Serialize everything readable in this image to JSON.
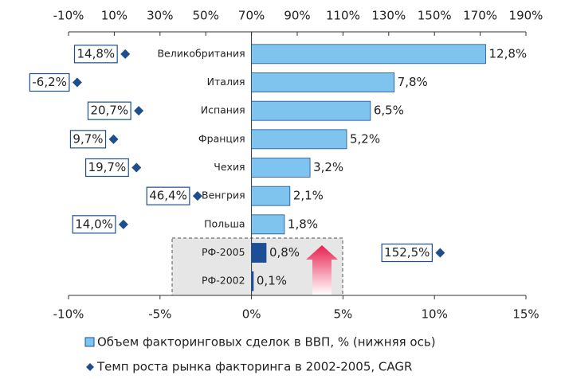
{
  "chart_data": {
    "type": "bar",
    "orientation": "horizontal",
    "categories": [
      "Великобритания",
      "Италия",
      "Испания",
      "Франция",
      "Чехия",
      "Венгрия",
      "Польша",
      "РФ-2005",
      "РФ-2002"
    ],
    "series": [
      {
        "name": "Объем факторинговых сделок в ВВП, % (нижняя ось)",
        "color": "#7fc4ef",
        "colors": [
          "#7fc4ef",
          "#7fc4ef",
          "#7fc4ef",
          "#7fc4ef",
          "#7fc4ef",
          "#7fc4ef",
          "#7fc4ef",
          "#1d4f96",
          "#1d4f96"
        ],
        "values": [
          12.8,
          7.8,
          6.5,
          5.2,
          3.2,
          2.1,
          1.8,
          0.8,
          0.1
        ],
        "value_labels": [
          "12,8%",
          "7,8%",
          "6,5%",
          "5,2%",
          "3,2%",
          "2,1%",
          "1,8%",
          "0,8%",
          "0,1%"
        ]
      },
      {
        "name": "Темп роста рынка факторинга в 2002-2005, CAGR",
        "type": "scatter",
        "axis": "x2",
        "color": "#1d4f8c",
        "values": [
          14.8,
          -6.2,
          20.7,
          9.7,
          19.7,
          46.4,
          14.0,
          152.5,
          null
        ],
        "value_labels": [
          "14,8%",
          "-6,2%",
          "20,7%",
          "9,7%",
          "19,7%",
          "46,4%",
          "14,0%",
          "152,5%",
          null
        ]
      }
    ],
    "xlim": [
      -10,
      15
    ],
    "xticks": [
      {
        "value": -10,
        "label": "-10%"
      },
      {
        "value": -5,
        "label": "-5%"
      },
      {
        "value": 0,
        "label": "0%"
      },
      {
        "value": 5,
        "label": "5%"
      },
      {
        "value": 10,
        "label": "10%"
      },
      {
        "value": 15,
        "label": "15%"
      }
    ],
    "x2lim": [
      -10,
      190
    ],
    "x2ticks": [
      {
        "value": -10,
        "label": "-10%"
      },
      {
        "value": 10,
        "label": "10%"
      },
      {
        "value": 30,
        "label": "30%"
      },
      {
        "value": 50,
        "label": "50%"
      },
      {
        "value": 70,
        "label": "70%"
      },
      {
        "value": 90,
        "label": "90%"
      },
      {
        "value": 110,
        "label": "110%"
      },
      {
        "value": 130,
        "label": "130%"
      },
      {
        "value": 150,
        "label": "150%"
      },
      {
        "value": 170,
        "label": "170%"
      },
      {
        "value": 190,
        "label": "190%"
      }
    ]
  }
}
